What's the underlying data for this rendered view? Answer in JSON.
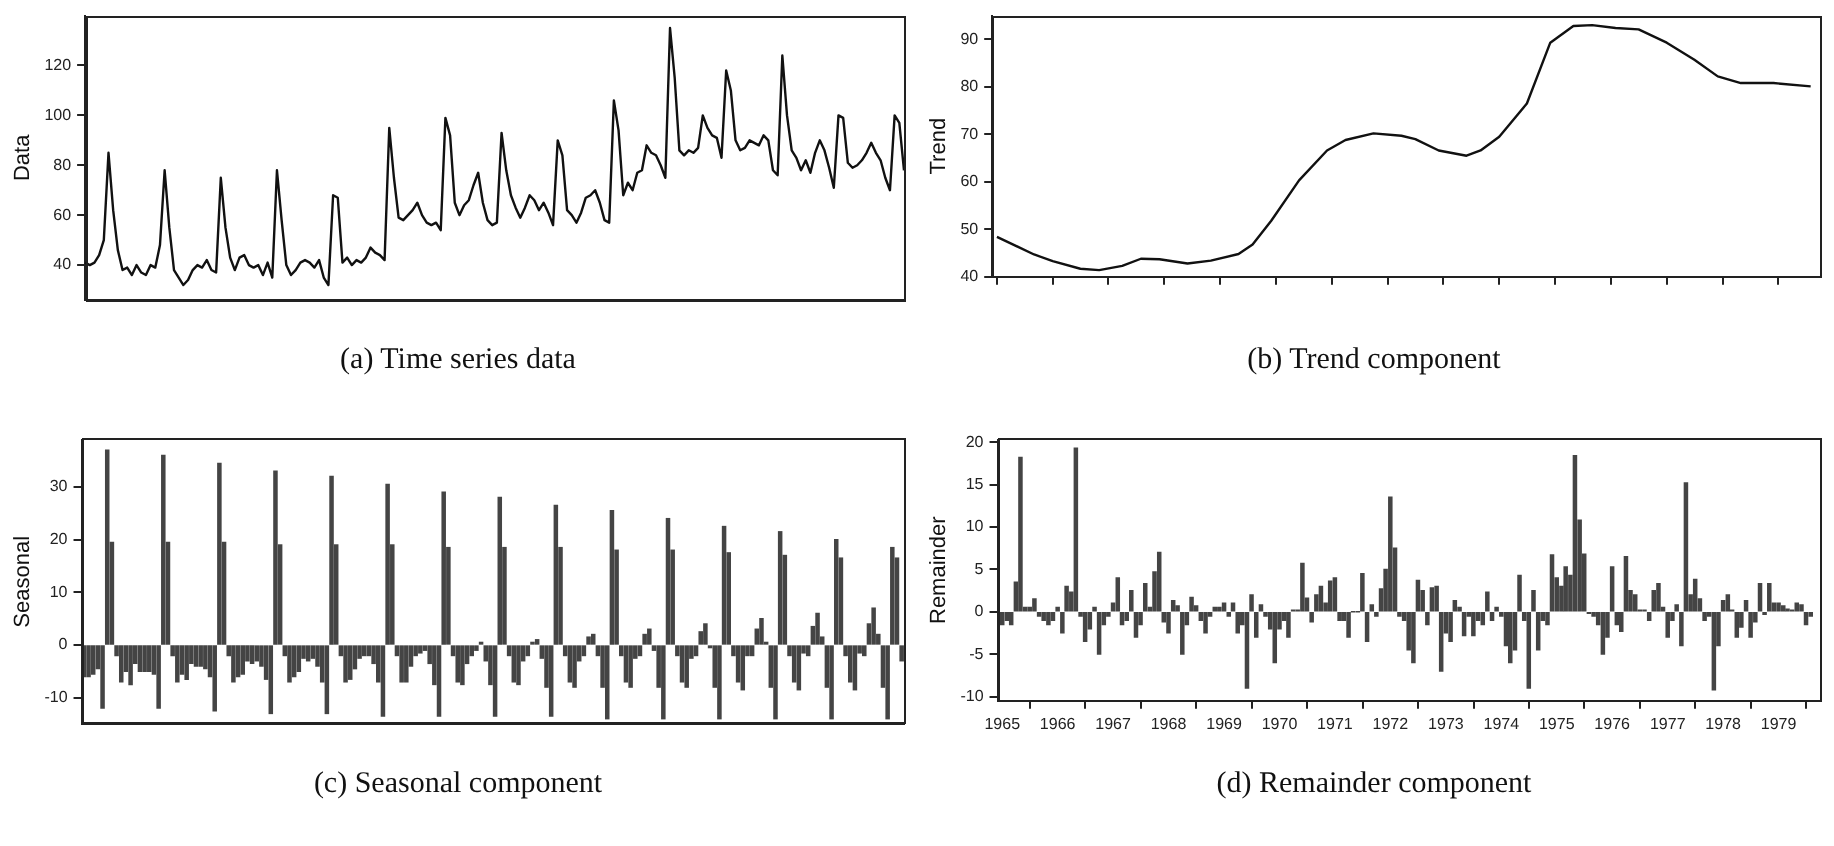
{
  "chart_data": [
    {
      "type": "line",
      "title": "(a) Time series data",
      "ylabel": "Data",
      "color": "#111111",
      "ylim": [
        26,
        140
      ],
      "yticks": [
        40,
        60,
        80,
        100,
        120
      ],
      "tick_labels": "y",
      "categories": [
        null,
        null,
        null,
        null,
        null,
        null,
        null,
        null,
        null,
        null,
        null,
        null,
        null,
        null,
        null,
        null,
        null,
        null,
        null,
        null,
        null,
        null,
        null,
        null,
        null,
        null,
        null,
        null,
        null,
        null,
        null,
        null,
        null,
        null,
        null,
        null,
        null,
        null,
        null,
        null,
        null,
        null,
        null,
        null,
        null,
        null,
        null,
        null,
        null,
        null,
        null,
        null,
        null,
        null,
        null,
        null,
        null,
        null,
        null,
        null,
        null,
        null,
        null,
        null,
        null,
        null,
        null,
        null,
        null,
        null,
        null,
        null,
        null,
        null,
        null,
        null,
        null,
        null,
        null,
        null,
        null,
        null,
        null,
        null,
        null,
        null,
        null,
        null,
        null,
        null,
        null,
        null,
        null,
        null,
        null,
        null,
        null,
        null,
        null,
        null,
        null,
        null,
        null,
        null,
        null,
        null,
        null,
        null,
        null,
        null,
        null,
        null,
        null,
        null,
        null,
        null,
        null,
        null,
        null,
        null,
        null,
        null,
        null,
        null,
        null,
        null,
        null,
        null,
        null,
        null,
        null,
        null,
        null,
        null,
        null,
        null,
        null,
        null,
        null,
        null,
        null,
        null,
        null,
        null,
        null,
        null,
        null,
        null,
        null,
        null,
        null,
        null,
        null,
        null,
        null,
        null,
        null,
        null,
        null,
        null,
        null,
        null,
        null,
        null,
        null,
        null,
        null,
        null,
        null,
        null,
        null,
        null,
        null,
        null,
        null,
        null
      ],
      "values": [
        41,
        40,
        41,
        44,
        50,
        85,
        62,
        46,
        38,
        39,
        36,
        40,
        37,
        36,
        40,
        39,
        48,
        78,
        55,
        38,
        35,
        32,
        34,
        38,
        40,
        39,
        42,
        38,
        37,
        75,
        55,
        43,
        38,
        43,
        44,
        40,
        39,
        40,
        36,
        41,
        35,
        78,
        58,
        40,
        36,
        38,
        41,
        42,
        41,
        39,
        42,
        35,
        32,
        68,
        67,
        41,
        43,
        40,
        42,
        41,
        43,
        47,
        45,
        44,
        42,
        95,
        75,
        59,
        58,
        60,
        62,
        65,
        60,
        57,
        56,
        57,
        54,
        99,
        92,
        65,
        60,
        64,
        66,
        72,
        77,
        65,
        58,
        56,
        57,
        93,
        78,
        68,
        63,
        59,
        63,
        68,
        66,
        62,
        65,
        61,
        56,
        90,
        84,
        62,
        60,
        57,
        61,
        67,
        68,
        70,
        65,
        58,
        57,
        106,
        94,
        68,
        73,
        70,
        77,
        78,
        88,
        85,
        84,
        80,
        75,
        135,
        115,
        86,
        84,
        86,
        85,
        87,
        100,
        95,
        92,
        91,
        83,
        118,
        110,
        90,
        86,
        87,
        90,
        89,
        88,
        92,
        90,
        78,
        76,
        124,
        100,
        86,
        83,
        78,
        82,
        77,
        85,
        90,
        86,
        79,
        71,
        100,
        99,
        81,
        79,
        80,
        82,
        85,
        89,
        85,
        82,
        75,
        70,
        100,
        97,
        78
      ]
    },
    {
      "type": "line",
      "title": "(b) Trend component",
      "ylabel": "Trend",
      "color": "#111111",
      "xlim": [
        "1964-12",
        "1979-10"
      ],
      "ylim": [
        40,
        95
      ],
      "yticks": [
        40,
        50,
        60,
        70,
        80,
        90
      ],
      "tick_labels": "y",
      "xticks": [
        {
          "value": "1965",
          "label": null
        },
        {
          "value": "1966",
          "label": null
        },
        {
          "value": "1967",
          "label": null
        },
        {
          "value": "1968",
          "label": null
        },
        {
          "value": "1969",
          "label": null
        },
        {
          "value": "1970",
          "label": null
        },
        {
          "value": "1971",
          "label": null
        },
        {
          "value": "1972",
          "label": null
        },
        {
          "value": "1973",
          "label": null
        },
        {
          "value": "1974",
          "label": null
        },
        {
          "value": "1975",
          "label": null
        },
        {
          "value": "1976",
          "label": null
        },
        {
          "value": "1977",
          "label": null
        },
        {
          "value": "1978",
          "label": null
        },
        {
          "value": "1979",
          "label": null
        }
      ],
      "x": [
        "1965-01",
        "1965-09",
        "1966-01",
        "1966-07",
        "1966-11",
        "1967-04",
        "1967-08",
        "1967-12",
        "1968-06",
        "1968-11",
        "1969-05",
        "1969-08",
        "1969-12",
        "1970-06",
        "1970-12",
        "1971-04",
        "1971-10",
        "1972-04",
        "1972-07",
        "1972-12",
        "1973-06",
        "1973-09",
        "1974-01",
        "1974-07",
        "1974-12",
        "1975-05",
        "1975-09",
        "1976-02",
        "1976-07",
        "1977-01",
        "1977-07",
        "1977-12",
        "1978-05",
        "1978-12",
        "1979-08"
      ],
      "values": [
        48.4,
        44.7,
        43.3,
        41.7,
        41.4,
        42.3,
        43.8,
        43.7,
        42.8,
        43.4,
        44.8,
        46.8,
        51.8,
        60.3,
        66.6,
        68.8,
        70.2,
        69.7,
        69,
        66.6,
        65.5,
        66.6,
        69.5,
        76.5,
        89.3,
        92.8,
        93,
        92.4,
        92.1,
        89.3,
        85.7,
        82.2,
        80.8,
        80.8,
        80.1
      ]
    },
    {
      "type": "bar",
      "title": "(c) Seasonal component",
      "ylabel": "Seasonal",
      "color": "#444444",
      "ylim": [
        -15,
        39
      ],
      "yticks": [
        -10,
        0,
        10,
        20,
        30
      ],
      "tick_labels": "y",
      "categories": [
        null,
        null,
        null,
        null,
        null,
        null,
        null,
        null,
        null,
        null,
        null,
        null,
        null,
        null,
        null,
        null,
        null,
        null,
        null,
        null,
        null,
        null,
        null,
        null,
        null,
        null,
        null,
        null,
        null,
        null,
        null,
        null,
        null,
        null,
        null,
        null,
        null,
        null,
        null,
        null,
        null,
        null,
        null,
        null,
        null,
        null,
        null,
        null,
        null,
        null,
        null,
        null,
        null,
        null,
        null,
        null,
        null,
        null,
        null,
        null,
        null,
        null,
        null,
        null,
        null,
        null,
        null,
        null,
        null,
        null,
        null,
        null,
        null,
        null,
        null,
        null,
        null,
        null,
        null,
        null,
        null,
        null,
        null,
        null,
        null,
        null,
        null,
        null,
        null,
        null,
        null,
        null,
        null,
        null,
        null,
        null,
        null,
        null,
        null,
        null,
        null,
        null,
        null,
        null,
        null,
        null,
        null,
        null,
        null,
        null,
        null,
        null,
        null,
        null,
        null,
        null,
        null,
        null,
        null,
        null,
        null,
        null,
        null,
        null,
        null,
        null,
        null,
        null,
        null,
        null,
        null,
        null,
        null,
        null,
        null,
        null,
        null,
        null,
        null,
        null,
        null,
        null,
        null,
        null,
        null,
        null,
        null,
        null,
        null,
        null,
        null,
        null,
        null,
        null,
        null,
        null,
        null,
        null,
        null,
        null,
        null,
        null,
        null,
        null,
        null,
        null,
        null,
        null,
        null,
        null,
        null,
        null,
        null,
        null,
        null,
        null
      ],
      "values": [
        -6,
        -6,
        -5.5,
        -4.5,
        -12,
        37,
        19.5,
        -2,
        -7,
        -5,
        -7.5,
        -3.5,
        -5,
        -5,
        -5,
        -5.5,
        -12,
        36,
        19.5,
        -2,
        -7,
        -5.5,
        -6.5,
        -3.5,
        -4,
        -4,
        -4.5,
        -6,
        -12.5,
        34.5,
        19.5,
        -2,
        -7,
        -6,
        -5.5,
        -3,
        -3.5,
        -3,
        -4,
        -6.5,
        -13,
        33,
        19,
        -2,
        -7,
        -6,
        -5,
        -2.5,
        -3,
        -2.5,
        -4,
        -7,
        -13,
        32,
        19,
        -2,
        -7,
        -6.5,
        -4.5,
        -2.5,
        -2,
        -2,
        -3.5,
        -7,
        -13.5,
        30.5,
        19,
        -2,
        -7,
        -7,
        -4,
        -2,
        -1.5,
        -1,
        -3.5,
        -7.5,
        -13.5,
        29,
        18.5,
        -2,
        -7,
        -7.5,
        -3.5,
        -2,
        -1,
        0.5,
        -3,
        -7.5,
        -13.5,
        28,
        18.5,
        -2,
        -7,
        -7.5,
        -3,
        -2,
        0.5,
        1,
        -2.5,
        -8,
        -13.5,
        26.5,
        18.5,
        -2,
        -7,
        -8,
        -3,
        -2,
        1.5,
        2,
        -2,
        -8,
        -14,
        25.5,
        18,
        -2,
        -7,
        -8,
        -2.5,
        -2,
        2,
        3,
        -1,
        -8,
        -14,
        24,
        18,
        -2,
        -7,
        -8,
        -2.5,
        -2,
        2.5,
        4,
        -0.5,
        -8,
        -14,
        22.5,
        17.5,
        -2,
        -7,
        -8.5,
        -2,
        -2,
        3,
        5,
        0.5,
        -8,
        -14,
        21.5,
        17,
        -2,
        -7,
        -8.5,
        -1.5,
        -2,
        3.5,
        6,
        1.5,
        -8,
        -14,
        20,
        16.5,
        -2,
        -7,
        -8.5,
        -1.5,
        -2,
        4,
        7,
        2,
        -8,
        -14,
        18.5,
        16.5,
        -3
      ]
    },
    {
      "type": "bar",
      "title": "(d) Remainder component",
      "ylabel": "Remainder",
      "color": "#444444",
      "xlim": [
        "1964-12",
        "1979-10"
      ],
      "ylim": [
        -10.5,
        20.3
      ],
      "yticks": [
        -10,
        -5,
        0,
        5,
        10,
        15,
        20
      ],
      "xticks": [
        {
          "value": "1965",
          "label": "1965"
        },
        {
          "value": "1966",
          "label": "1966"
        },
        {
          "value": "1967",
          "label": "1967"
        },
        {
          "value": "1968",
          "label": "1968"
        },
        {
          "value": "1969",
          "label": "1969"
        },
        {
          "value": "1970",
          "label": "1970"
        },
        {
          "value": "1971",
          "label": "1971"
        },
        {
          "value": "1972",
          "label": "1972"
        },
        {
          "value": "1973",
          "label": "1973"
        },
        {
          "value": "1974",
          "label": "1974"
        },
        {
          "value": "1975",
          "label": "1975"
        },
        {
          "value": "1976",
          "label": "1976"
        },
        {
          "value": "1977",
          "label": "1977"
        },
        {
          "value": "1978",
          "label": "1978"
        },
        {
          "value": "1979",
          "label": "1979"
        }
      ],
      "x": [
        "1965-01",
        "1965-02",
        "1965-03",
        "1965-04",
        "1965-05",
        "1965-06",
        "1965-07",
        "1965-08",
        "1965-09",
        "1965-10",
        "1965-11",
        "1965-12",
        "1966-01",
        "1966-02",
        "1966-03",
        "1966-04",
        "1966-05",
        "1966-06",
        "1966-07",
        "1966-08",
        "1966-09",
        "1966-10",
        "1966-11",
        "1966-12",
        "1967-01",
        "1967-02",
        "1967-03",
        "1967-04",
        "1967-05",
        "1967-06",
        "1967-07",
        "1967-08",
        "1967-09",
        "1967-10",
        "1967-11",
        "1967-12",
        "1968-01",
        "1968-02",
        "1968-03",
        "1968-04",
        "1968-05",
        "1968-06",
        "1968-07",
        "1968-08",
        "1968-09",
        "1968-10",
        "1968-11",
        "1968-12",
        "1969-01",
        "1969-02",
        "1969-03",
        "1969-04",
        "1969-05",
        "1969-06",
        "1969-07",
        "1969-08",
        "1969-09",
        "1969-10",
        "1969-11",
        "1969-12",
        "1970-01",
        "1970-02",
        "1970-03",
        "1970-04",
        "1970-05",
        "1970-06",
        "1970-07",
        "1970-08",
        "1970-09",
        "1970-10",
        "1970-11",
        "1970-12",
        "1971-01",
        "1971-02",
        "1971-03",
        "1971-04",
        "1971-05",
        "1971-06",
        "1971-07",
        "1971-08",
        "1971-09",
        "1971-10",
        "1971-11",
        "1971-12",
        "1972-01",
        "1972-02",
        "1972-03",
        "1972-04",
        "1972-05",
        "1972-06",
        "1972-07",
        "1972-08",
        "1972-09",
        "1972-10",
        "1972-11",
        "1972-12",
        "1973-01",
        "1973-02",
        "1973-03",
        "1973-04",
        "1973-05",
        "1973-06",
        "1973-07",
        "1973-08",
        "1973-09",
        "1973-10",
        "1973-11",
        "1973-12",
        "1974-01",
        "1974-02",
        "1974-03",
        "1974-04",
        "1974-05",
        "1974-06",
        "1974-07",
        "1974-08",
        "1974-09",
        "1974-10",
        "1974-11",
        "1974-12",
        "1975-01",
        "1975-02",
        "1975-03",
        "1975-04",
        "1975-05",
        "1975-06",
        "1975-07",
        "1975-08",
        "1975-09",
        "1975-10",
        "1975-11",
        "1975-12",
        "1976-01",
        "1976-02",
        "1976-03",
        "1976-04",
        "1976-05",
        "1976-06",
        "1976-07",
        "1976-08",
        "1976-09",
        "1976-10",
        "1976-11",
        "1976-12",
        "1977-01",
        "1977-02",
        "1977-03",
        "1977-04",
        "1977-05",
        "1977-06",
        "1977-07",
        "1977-08",
        "1977-09",
        "1977-10",
        "1977-11",
        "1977-12",
        "1978-01",
        "1978-02",
        "1978-03",
        "1978-04",
        "1978-05",
        "1978-06",
        "1978-07",
        "1978-08",
        "1978-09",
        "1978-10",
        "1978-11",
        "1978-12",
        "1979-01",
        "1979-02",
        "1979-03",
        "1979-04",
        "1979-05",
        "1979-06",
        "1979-07",
        "1979-08"
      ],
      "values": [
        -1.5,
        -1,
        -1.5,
        3.5,
        18.2,
        0.5,
        0.5,
        1.5,
        -0.5,
        -1,
        -1.5,
        -1,
        0.5,
        -2.5,
        3,
        2.3,
        19.3,
        -0.5,
        -3.5,
        -2,
        0.5,
        -5,
        -1.5,
        -0.5,
        1,
        4,
        -1.5,
        -1,
        2.5,
        -3,
        -1.5,
        3.3,
        0.5,
        4.7,
        7,
        -1.2,
        -2.5,
        1.3,
        0.7,
        -5,
        -1.5,
        1.7,
        0.7,
        -1,
        -2.5,
        -0.5,
        0.5,
        0.5,
        1,
        -0.5,
        1,
        -2.5,
        -1.5,
        -9,
        2,
        -3,
        0.8,
        -0.5,
        -2,
        -6,
        -2,
        -1,
        -3,
        0.2,
        0.2,
        5.7,
        1.6,
        -1.2,
        2,
        3,
        1,
        3.6,
        4,
        -1,
        -1,
        -3,
        0,
        0,
        4.5,
        -3.5,
        0.8,
        -0.5,
        2.7,
        5,
        13.5,
        7.5,
        -0.5,
        -1,
        -4.5,
        -6,
        3.7,
        2.5,
        -1.5,
        2.8,
        3,
        -7,
        -2.5,
        -3.5,
        1.3,
        0.5,
        -2.8,
        -0.5,
        -2.8,
        -1,
        -1.5,
        2.3,
        -1,
        0.5,
        -0.5,
        -4,
        -6,
        -4.5,
        4.3,
        -1,
        -9,
        2.5,
        -4.5,
        -1,
        -1.5,
        6.7,
        4,
        3,
        5.3,
        4.3,
        18.4,
        10.8,
        6.8,
        -0.2,
        -0.5,
        -1.5,
        -5,
        -3,
        5.3,
        -1.5,
        -2.3,
        6.5,
        2.5,
        2,
        0.2,
        0.2,
        -1,
        2.5,
        3.3,
        0.5,
        -3,
        -1,
        0.8,
        -4,
        15.2,
        2,
        3.8,
        1.5,
        -1,
        -0.5,
        -9.2,
        -4,
        1.3,
        2,
        0.2,
        -3,
        -1.8,
        1.3,
        -3,
        -1.2,
        3.3,
        -0.3,
        3.3,
        1,
        1,
        0.7,
        0.3,
        0.2,
        1,
        0.8,
        -1.5,
        -0.5
      ]
    }
  ]
}
